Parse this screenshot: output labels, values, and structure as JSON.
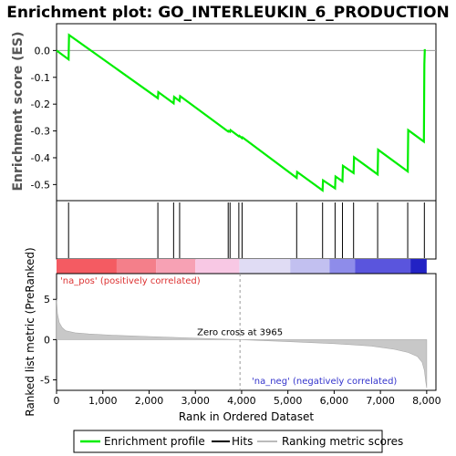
{
  "chart_data": {
    "type": "line",
    "title": "Enrichment plot: GO_INTERLEUKIN_6_PRODUCTION",
    "es_panel": {
      "ylabel": "Enrichment score (ES)",
      "ylim": [
        -0.56,
        0.1
      ],
      "yticks": [
        "0.0",
        "-0.1",
        "-0.2",
        "-0.3",
        "-0.4",
        "-0.5"
      ],
      "ytick_values": [
        0.0,
        -0.1,
        -0.2,
        -0.3,
        -0.4,
        -0.5
      ],
      "series": [
        {
          "name": "Enrichment profile",
          "color": "#00ee00",
          "x": [
            0,
            260,
            270,
            2190,
            2200,
            2530,
            2540,
            2660,
            2670,
            3710,
            3720,
            3750,
            3760,
            3940,
            3950,
            4010,
            4020,
            5190,
            5200,
            5750,
            5760,
            6020,
            6030,
            6180,
            6190,
            6420,
            6430,
            6940,
            6950,
            7590,
            7600,
            7940,
            7950,
            7960
          ],
          "y": [
            0.0,
            -0.033,
            0.058,
            -0.178,
            -0.155,
            -0.197,
            -0.173,
            -0.188,
            -0.17,
            -0.302,
            -0.3,
            -0.303,
            -0.297,
            -0.32,
            -0.318,
            -0.327,
            -0.324,
            -0.475,
            -0.453,
            -0.522,
            -0.484,
            -0.514,
            -0.47,
            -0.488,
            -0.43,
            -0.457,
            -0.398,
            -0.462,
            -0.37,
            -0.451,
            -0.297,
            -0.34,
            -0.05,
            0.005
          ]
        }
      ]
    },
    "hits": [
      260,
      2190,
      2530,
      2660,
      3710,
      3750,
      3940,
      4010,
      5190,
      5750,
      6020,
      6180,
      6420,
      6940,
      7590,
      7950
    ],
    "ranking_panel": {
      "ylabel": "Ranked list metric (PreRanked)",
      "xlabel": "Rank in Ordered Dataset",
      "ylim": [
        -6.3,
        8.2
      ],
      "yticks": [
        "5",
        "0",
        "-5"
      ],
      "ytick_values": [
        5,
        0,
        -5
      ],
      "xlim": [
        0,
        8200
      ],
      "xticks": [
        "0",
        "1,000",
        "2,000",
        "3,000",
        "4,000",
        "5,000",
        "6,000",
        "7,000",
        "8,000"
      ],
      "xtick_values": [
        0,
        1000,
        2000,
        3000,
        4000,
        5000,
        6000,
        7000,
        8000
      ],
      "metric_profile": {
        "x": [
          0,
          20,
          60,
          120,
          200,
          400,
          700,
          1200,
          2000,
          3000,
          3965,
          5000,
          6000,
          6800,
          7300,
          7600,
          7800,
          7900,
          7950,
          7980,
          8000
        ],
        "y": [
          5.0,
          3.2,
          2.1,
          1.5,
          1.1,
          0.85,
          0.7,
          0.55,
          0.38,
          0.18,
          0.0,
          -0.25,
          -0.5,
          -0.8,
          -1.2,
          -1.6,
          -2.1,
          -2.8,
          -3.8,
          -5.2,
          -6.0
        ]
      },
      "zero_cross_label": "Zero cross at 3965",
      "zero_cross_rank": 3965,
      "pos_label": "'na_pos' (positively correlated)",
      "neg_label": "'na_neg' (negatively correlated)",
      "pos_color": "#dd3333",
      "neg_color": "#3333cc"
    },
    "color_bar": [
      {
        "from": 0,
        "to": 1300,
        "color": "#f45b62"
      },
      {
        "from": 1300,
        "to": 2150,
        "color": "#f47f8a"
      },
      {
        "from": 2150,
        "to": 3000,
        "color": "#f7a1b4"
      },
      {
        "from": 3000,
        "to": 3950,
        "color": "#f8c8e4"
      },
      {
        "from": 3950,
        "to": 5050,
        "color": "#e0dcf4"
      },
      {
        "from": 5050,
        "to": 5900,
        "color": "#c2c0f0"
      },
      {
        "from": 5900,
        "to": 6450,
        "color": "#8e8cea"
      },
      {
        "from": 6450,
        "to": 7650,
        "color": "#5a55dd"
      },
      {
        "from": 7650,
        "to": 8000,
        "color": "#2222c4"
      }
    ],
    "legend": {
      "placement": "bottom",
      "items": [
        {
          "label": "Enrichment profile",
          "color": "#00ee00"
        },
        {
          "label": "Hits",
          "color": "#000000"
        },
        {
          "label": "Ranking metric scores",
          "color": "#bbbbbb"
        }
      ]
    }
  }
}
